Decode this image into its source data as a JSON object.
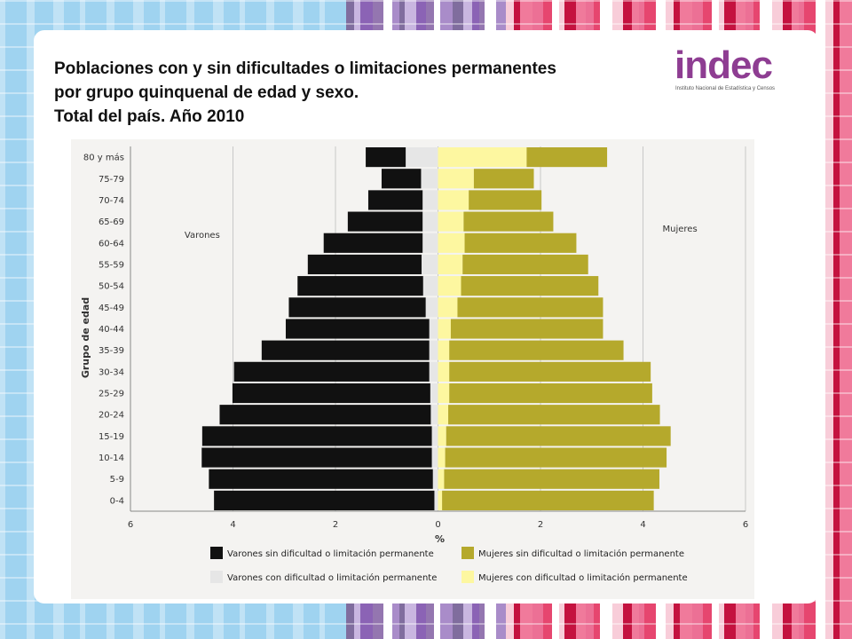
{
  "slide": {
    "title_lines": [
      "Poblaciones con y sin dificultades o limitaciones permanentes",
      "por grupo quinquenal de edad y sexo.",
      "Total del país. Año 2010"
    ]
  },
  "logo": {
    "word": "indec",
    "subtitle": "Instituto Nacional de Estadística y Censos",
    "color": "#8e3d92"
  },
  "chart_data": {
    "type": "bar",
    "orientation": "horizontal-population-pyramid",
    "categories": [
      "80 y más",
      "75-79",
      "70-74",
      "65-69",
      "60-64",
      "55-59",
      "50-54",
      "45-49",
      "40-44",
      "35-39",
      "30-34",
      "25-29",
      "20-24",
      "15-19",
      "10-14",
      "5-9",
      "0-4"
    ],
    "ylabel": "Grupo de edad",
    "xlabel": "%",
    "xlim": [
      -6,
      6
    ],
    "x_ticks": [
      -6,
      -4,
      -2,
      0,
      2,
      4,
      6
    ],
    "x_tick_labels": [
      "6",
      "4",
      "2",
      "0",
      "2",
      "4",
      "6"
    ],
    "gridlines": true,
    "side_labels": {
      "left": "Varones",
      "right": "Mujeres"
    },
    "series": [
      {
        "name": "Varones con dificultad o limitación permanente",
        "side": "left",
        "color": "#e6e6e6",
        "values": [
          0.63,
          0.33,
          0.3,
          0.3,
          0.3,
          0.32,
          0.29,
          0.24,
          0.17,
          0.17,
          0.17,
          0.15,
          0.14,
          0.12,
          0.12,
          0.1,
          0.07
        ]
      },
      {
        "name": "Varones sin dificultad o limitación permanente",
        "side": "left",
        "color": "#111111",
        "values": [
          0.78,
          0.77,
          1.06,
          1.46,
          1.93,
          2.22,
          2.45,
          2.67,
          2.8,
          3.27,
          3.81,
          3.86,
          4.12,
          4.48,
          4.49,
          4.37,
          4.3
        ]
      },
      {
        "name": "Mujeres con dificultad o limitación permanente",
        "side": "right",
        "color": "#fdf7a0",
        "values": [
          1.73,
          0.7,
          0.6,
          0.5,
          0.52,
          0.48,
          0.45,
          0.38,
          0.25,
          0.22,
          0.22,
          0.22,
          0.2,
          0.16,
          0.14,
          0.12,
          0.08
        ]
      },
      {
        "name": "Mujeres sin dificultad o limitación permanente",
        "side": "right",
        "color": "#b5a92c",
        "values": [
          1.57,
          1.17,
          1.42,
          1.75,
          2.18,
          2.45,
          2.68,
          2.84,
          2.97,
          3.4,
          3.93,
          3.96,
          4.13,
          4.38,
          4.32,
          4.2,
          4.13
        ]
      }
    ],
    "legend": [
      {
        "label": "Varones sin dificultad o limitación permanente",
        "color": "#111111"
      },
      {
        "label": "Mujeres sin dificultad o limitación permanente",
        "color": "#b5a92c"
      },
      {
        "label": "Varones con dificultad o limitación permanente",
        "color": "#e6e6e6"
      },
      {
        "label": "Mujeres con dificultad o limitación permanente",
        "color": "#fdf7a0"
      }
    ]
  }
}
